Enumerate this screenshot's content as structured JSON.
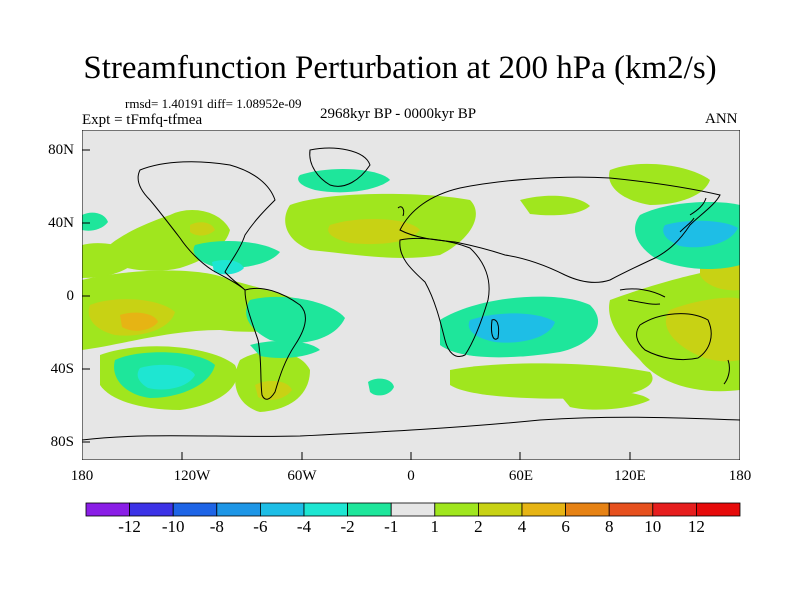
{
  "title": "Streamfunction Perturbation at 200 hPa (km2/s)",
  "stats": "rmsd= 1.40191 diff= 1.08952e-09",
  "experiment": "Expt = tFmfq-tfmea",
  "period": "2968kyr BP - 0000kyr BP",
  "season": "ANN",
  "lat_labels": [
    "80N",
    "40N",
    "0",
    "40S",
    "80S"
  ],
  "lon_labels": [
    "180",
    "120W",
    "60W",
    "0",
    "60E",
    "120E",
    "180"
  ],
  "colorbar": {
    "labels": [
      "-12",
      "-10",
      "-8",
      "-6",
      "-4",
      "-2",
      "-1",
      "1",
      "2",
      "4",
      "6",
      "8",
      "10",
      "12"
    ],
    "colors": [
      "#8a1ee6",
      "#3c32e6",
      "#1e64e6",
      "#1e96e6",
      "#1ebee6",
      "#1ee6d2",
      "#1ee69b",
      "#e6e6e6",
      "#a0e61e",
      "#c8d214",
      "#e6b414",
      "#e68214",
      "#e6501e",
      "#e61e1e",
      "#e60a0a"
    ]
  },
  "field_levels": {
    "neutral": "#e6e6e6",
    "pos1": "#a0e61e",
    "pos2": "#c8d214",
    "pos3": "#e6b414",
    "neg1": "#1ee69b",
    "neg2": "#1ee6d2",
    "neg3": "#1ebee6"
  }
}
